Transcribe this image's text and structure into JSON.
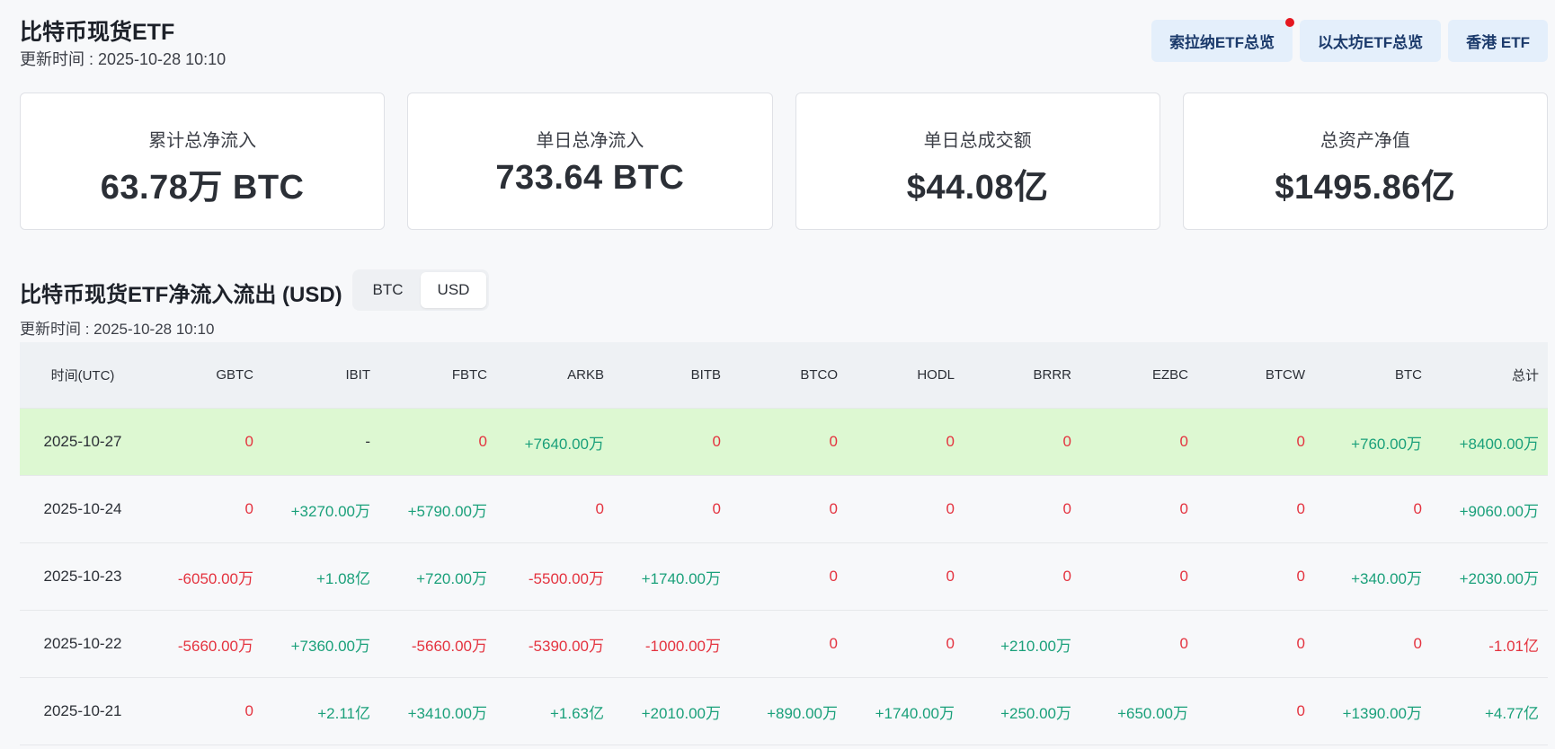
{
  "header": {
    "title": "比特币现货ETF",
    "updated": "更新时间 : 2025-10-28 10:10",
    "nav": [
      {
        "label": "索拉纳ETF总览",
        "dot": true
      },
      {
        "label": "以太坊ETF总览",
        "dot": false
      },
      {
        "label": "香港 ETF",
        "dot": false
      }
    ]
  },
  "cards": [
    {
      "label": "累计总净流入",
      "value": "63.78万 BTC"
    },
    {
      "label": "单日总净流入",
      "value": "733.64 BTC"
    },
    {
      "label": "单日总成交额",
      "value": "$44.08亿"
    },
    {
      "label": "总资产净值",
      "value": "$1495.86亿"
    }
  ],
  "section": {
    "title": "比特币现货ETF净流入流出 (USD)",
    "updated": "更新时间 : 2025-10-28 10:10",
    "toggle": {
      "options": [
        "BTC",
        "USD"
      ],
      "selected": "USD"
    }
  },
  "table": {
    "columns": [
      "时间(UTC)",
      "GBTC",
      "IBIT",
      "FBTC",
      "ARKB",
      "BITB",
      "BTCO",
      "HODL",
      "BRRR",
      "EZBC",
      "BTCW",
      "BTC",
      "总计"
    ],
    "rows": [
      {
        "date": "2025-10-27",
        "highlight": true,
        "values": [
          "0",
          "-",
          "0",
          "+7640.00万",
          "0",
          "0",
          "0",
          "0",
          "0",
          "0",
          "+760.00万",
          "+8400.00万"
        ]
      },
      {
        "date": "2025-10-24",
        "highlight": false,
        "values": [
          "0",
          "+3270.00万",
          "+5790.00万",
          "0",
          "0",
          "0",
          "0",
          "0",
          "0",
          "0",
          "0",
          "+9060.00万"
        ]
      },
      {
        "date": "2025-10-23",
        "highlight": false,
        "values": [
          "-6050.00万",
          "+1.08亿",
          "+720.00万",
          "-5500.00万",
          "+1740.00万",
          "0",
          "0",
          "0",
          "0",
          "0",
          "+340.00万",
          "+2030.00万"
        ]
      },
      {
        "date": "2025-10-22",
        "highlight": false,
        "values": [
          "-5660.00万",
          "+7360.00万",
          "-5660.00万",
          "-5390.00万",
          "-1000.00万",
          "0",
          "0",
          "+210.00万",
          "0",
          "0",
          "0",
          "-1.01亿"
        ]
      },
      {
        "date": "2025-10-21",
        "highlight": false,
        "values": [
          "0",
          "+2.11亿",
          "+3410.00万",
          "+1.63亿",
          "+2010.00万",
          "+890.00万",
          "+1740.00万",
          "+250.00万",
          "+650.00万",
          "0",
          "+1390.00万",
          "+4.77亿"
        ]
      }
    ]
  },
  "colors": {
    "positive": "#1aa07a",
    "negative": "#e4333f",
    "highlight_row": "#ddf8d2",
    "nav_bg": "#e4effb"
  }
}
